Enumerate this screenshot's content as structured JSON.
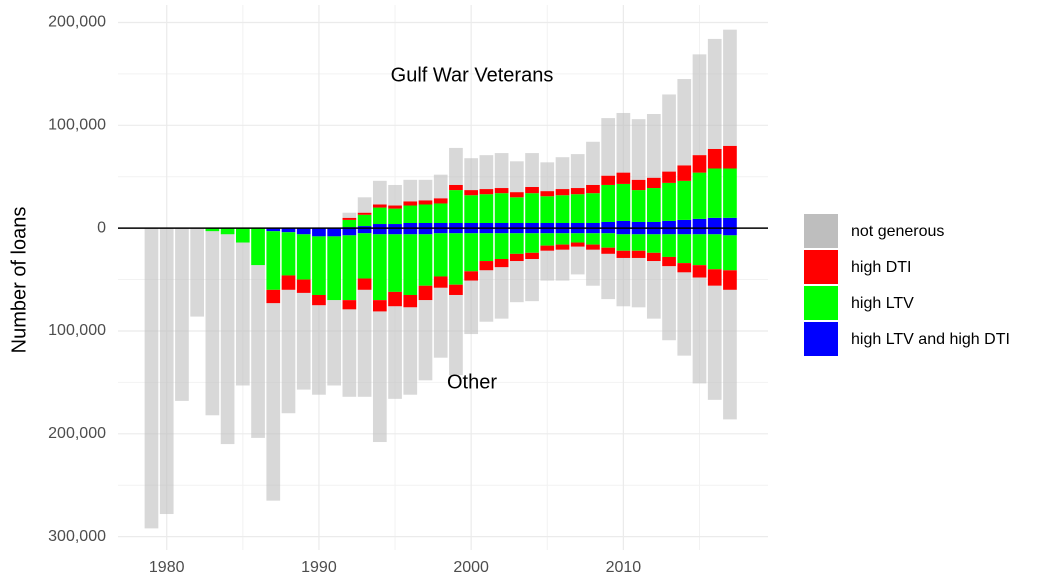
{
  "chart_data": {
    "type": "bar",
    "ylabel": "Number of loans",
    "annotations": [
      "Gulf War Veterans",
      "Other"
    ],
    "x": [
      1979,
      1980,
      1981,
      1982,
      1983,
      1984,
      1985,
      1986,
      1987,
      1988,
      1989,
      1990,
      1991,
      1992,
      1993,
      1994,
      1995,
      1996,
      1997,
      1998,
      1999,
      2000,
      2001,
      2002,
      2003,
      2004,
      2005,
      2006,
      2007,
      2008,
      2009,
      2010,
      2011,
      2012,
      2013,
      2014,
      2015,
      2016,
      2017
    ],
    "xlim": [
      1976.8,
      2019.5
    ],
    "xticks": [
      1980,
      1990,
      2000,
      2010
    ],
    "minor_xticks": [
      1985,
      1995,
      2005,
      2015
    ],
    "ylim": [
      -313000,
      217000
    ],
    "yticks": [
      {
        "value": -300000,
        "label": "300,000"
      },
      {
        "value": -200000,
        "label": "200,000"
      },
      {
        "value": -100000,
        "label": "100,000"
      },
      0,
      {
        "value": 100000,
        "label": "100,000"
      },
      {
        "value": 200000,
        "label": "200,000"
      }
    ],
    "minor_yticks": [
      -250000,
      -150000,
      -50000,
      50000,
      150000
    ],
    "grid": true,
    "legend": "right",
    "series": [
      {
        "name": "not generous",
        "color": "#bebebe",
        "alpha": 0.6,
        "values": [
          0,
          0,
          0,
          0,
          0,
          0,
          0,
          0,
          0,
          0,
          0,
          0,
          0,
          5000,
          15000,
          23000,
          20000,
          21000,
          20000,
          23000,
          36000,
          31000,
          33000,
          34000,
          30000,
          33000,
          28000,
          31000,
          33000,
          42000,
          56000,
          58000,
          59000,
          62000,
          75000,
          84000,
          98000,
          107000,
          113000
        ],
        "lower_values": [
          -292000,
          -278000,
          -168000,
          -86000,
          -179000,
          -204000,
          -139000,
          -168000,
          -192000,
          -120000,
          -94000,
          -87000,
          -83000,
          -85000,
          -104000,
          -127000,
          -90000,
          -85000,
          -78000,
          -68000,
          -78000,
          -52000,
          -50000,
          -50000,
          -40000,
          -41000,
          -29000,
          -30000,
          -27000,
          -35000,
          -44000,
          -47000,
          -48000,
          -56000,
          -72000,
          -81000,
          -103000,
          -111000,
          -126000
        ]
      },
      {
        "name": "high DTI",
        "color": "#ff0000",
        "alpha": 1,
        "values": [
          0,
          0,
          0,
          0,
          0,
          0,
          0,
          0,
          0,
          0,
          0,
          0,
          0,
          2000,
          2000,
          3000,
          3000,
          4000,
          4000,
          5000,
          5000,
          5000,
          5000,
          5000,
          5000,
          6000,
          5000,
          6000,
          6000,
          8000,
          9000,
          11000,
          10000,
          10000,
          11000,
          15000,
          17000,
          19000,
          22000
        ],
        "lower_values": [
          0,
          0,
          0,
          0,
          0,
          0,
          0,
          0,
          -13000,
          -14000,
          -13000,
          -10000,
          0,
          -9000,
          -11000,
          -11000,
          -14000,
          -12000,
          -14000,
          -11000,
          -10000,
          -9000,
          -9000,
          -8000,
          -7000,
          -6000,
          -5000,
          -5000,
          -4000,
          -5000,
          -6000,
          -7000,
          -7000,
          -8000,
          -9000,
          -9000,
          -12000,
          -16000,
          -19000
        ]
      },
      {
        "name": "high LTV",
        "color": "#00ff00",
        "alpha": 1,
        "values": [
          0,
          0,
          0,
          0,
          0,
          0,
          0,
          0,
          0,
          0,
          0,
          0,
          0,
          7000,
          11000,
          16000,
          15000,
          17000,
          18000,
          19000,
          32000,
          27000,
          28000,
          29000,
          25000,
          29000,
          26000,
          27000,
          28000,
          29000,
          36000,
          36000,
          31000,
          33000,
          37000,
          38000,
          45000,
          48000,
          48000
        ],
        "lower_values": [
          0,
          0,
          0,
          0,
          -3000,
          -6000,
          -14000,
          -36000,
          -57000,
          -42000,
          -44000,
          -57000,
          -62000,
          -63000,
          -44000,
          -64000,
          -56000,
          -59000,
          -50000,
          -42000,
          -50000,
          -37000,
          -27000,
          -25000,
          -20000,
          -19000,
          -12000,
          -11000,
          -9000,
          -11000,
          -14000,
          -16000,
          -16000,
          -18000,
          -22000,
          -28000,
          -30000,
          -34000,
          -34000
        ]
      },
      {
        "name": "high LTV and high DTI",
        "color": "#0000ff",
        "alpha": 1,
        "values": [
          0,
          0,
          0,
          0,
          0,
          0,
          0,
          0,
          0,
          0,
          0,
          0,
          0,
          1000,
          2000,
          4000,
          4000,
          5000,
          5000,
          5000,
          5000,
          5000,
          5000,
          5000,
          5000,
          5000,
          5000,
          5000,
          5000,
          5000,
          6000,
          7000,
          6000,
          6000,
          7000,
          8000,
          9000,
          10000,
          10000
        ],
        "lower_values": [
          0,
          0,
          0,
          0,
          0,
          0,
          0,
          0,
          -3000,
          -4000,
          -6000,
          -8000,
          -8000,
          -7000,
          -5000,
          -6000,
          -6000,
          -6000,
          -6000,
          -5000,
          -5000,
          -5000,
          -5000,
          -5000,
          -5000,
          -5000,
          -5000,
          -5000,
          -5000,
          -5000,
          -5000,
          -6000,
          -6000,
          -6000,
          -6000,
          -6000,
          -6000,
          -6000,
          -7000
        ]
      }
    ]
  }
}
